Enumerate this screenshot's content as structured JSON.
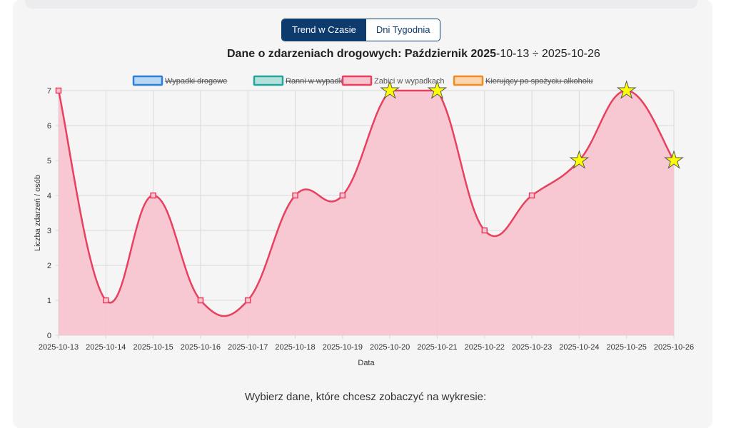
{
  "tabs": [
    {
      "label": "Trend w Czasie",
      "active": true
    },
    {
      "label": "Dni Tygodnia",
      "active": false
    }
  ],
  "title": {
    "main": "Dane o zdarzeniach drogowych: Październik ",
    "year": "2025",
    "start_rest": "-10-13",
    "sep": " ÷ ",
    "end": "2025-10-26"
  },
  "footer": {
    "prompt": "Wybierz dane, które chcesz zobaczyć na wykresie:"
  },
  "colors": {
    "accent": "#0d3b6e",
    "series_line": "#e8405f",
    "series_fill": "#f7c3ce",
    "star_fill": "#ffff00",
    "grid": "#d9d9d9"
  },
  "chart_data": {
    "type": "area",
    "xlabel": "Data",
    "ylabel": "Liczba zdarzeń / osób",
    "ylim": [
      0,
      7
    ],
    "yticks": [
      "0",
      "1",
      "2",
      "3",
      "4",
      "5",
      "6",
      "7"
    ],
    "grid": true,
    "legend_position": "top",
    "legend": [
      {
        "name": "Wypadki drogowe",
        "color": "#2f7ed8",
        "fill": "#b9d6f2",
        "hidden": true
      },
      {
        "name": "Ranni w wypadkach",
        "color": "#26a69a",
        "fill": "#b6e0dc",
        "hidden": true
      },
      {
        "name": "Zabici w wypadkach",
        "color": "#e8405f",
        "fill": "#f7c3ce",
        "hidden": false
      },
      {
        "name": "Kierujący po spożyciu alkoholu",
        "color": "#f08a24",
        "fill": "#fad6b0",
        "hidden": true
      }
    ],
    "categories": [
      "2025-10-13",
      "2025-10-14",
      "2025-10-15",
      "2025-10-16",
      "2025-10-17",
      "2025-10-18",
      "2025-10-19",
      "2025-10-20",
      "2025-10-21",
      "2025-10-22",
      "2025-10-23",
      "2025-10-24",
      "2025-10-25",
      "2025-10-26"
    ],
    "series": [
      {
        "name": "Zabici w wypadkach",
        "values": [
          7,
          1,
          4,
          1,
          1,
          4,
          4,
          7,
          7,
          3,
          4,
          5,
          7,
          5
        ],
        "star_markers": [
          7,
          8,
          11,
          12,
          13
        ]
      }
    ]
  }
}
